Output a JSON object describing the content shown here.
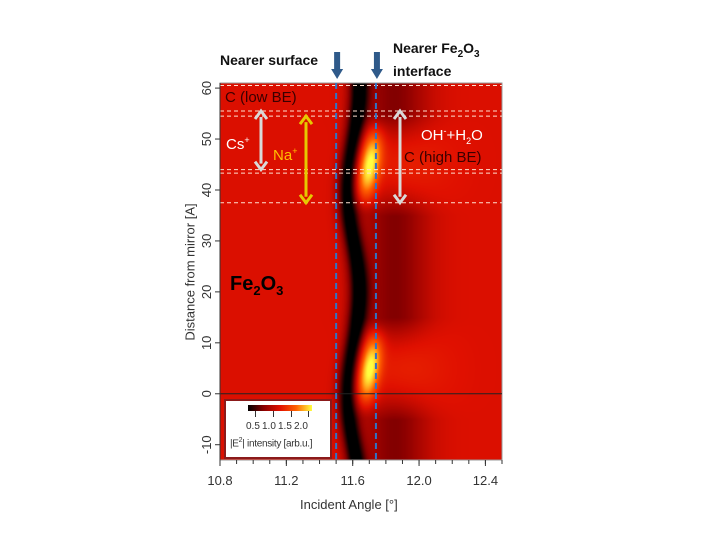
{
  "chart_data": {
    "type": "heatmap",
    "xlabel": "Incident Angle [°]",
    "ylabel": "Distance from mirror [A]",
    "xlim": [
      10.8,
      12.5
    ],
    "ylim": [
      -13,
      61
    ],
    "xticks": [
      "10.8",
      "11.2",
      "11.6",
      "12.0",
      "12.4"
    ],
    "xtick_values": [
      10.8,
      11.2,
      11.6,
      12.0,
      12.4
    ],
    "yticks": [
      "60",
      "50",
      "40",
      "30",
      "20",
      "10",
      "0",
      "-10"
    ],
    "ytick_values": [
      60,
      50,
      40,
      30,
      20,
      10,
      0,
      -10
    ],
    "colorbar": {
      "label_prefix": "|E",
      "label_sup": "2",
      "label_suffix": "| intensity [arb.u.]",
      "ticks": [
        "0.5",
        "1.0",
        "1.5",
        "2.0"
      ],
      "range": [
        0.3,
        2.1
      ],
      "colormap": [
        "#000000",
        "#8b0000",
        "#e01000",
        "#ff6000",
        "#ffff40"
      ]
    },
    "vertical_lines": [
      11.5,
      11.74
    ],
    "horizontal_dashed_lines": [
      60.5,
      55.5,
      54.5,
      44,
      43.3,
      37.5
    ],
    "horizontal_line": 0,
    "headers": {
      "left": "Nearer surface",
      "right_line1_a": "Nearer Fe",
      "right_sub1": "2",
      "right_mid": "O",
      "right_sub2": "3",
      "right_line2": "interface"
    },
    "annotations": {
      "c_low": "C (low BE)",
      "cs": "Cs",
      "cs_sup": "+",
      "na": "Na",
      "na_sup": "+",
      "oh": "OH",
      "oh_sup": "-",
      "oh_rest": "+H",
      "oh_sub": "2",
      "oh_end": "O",
      "c_high": "C (high BE)",
      "fe_a": "Fe",
      "fe_sub1": "2",
      "fe_b": "O",
      "fe_sub2": "3"
    },
    "colors": {
      "arrow_blue": "#2f5a8a",
      "dashed_blue": "#2e75c8",
      "na_arrow": "#e6c800",
      "cs_arrow": "#d9d9d9",
      "na_text": "#ffc000"
    }
  }
}
